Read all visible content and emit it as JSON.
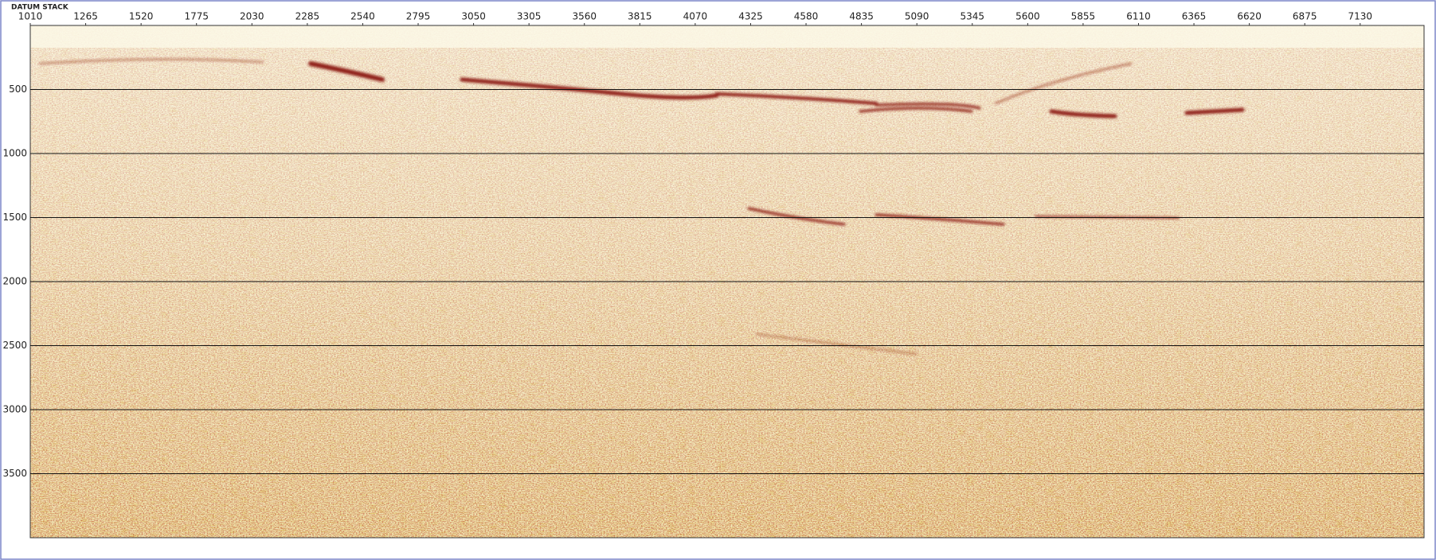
{
  "chart_data": {
    "type": "seismic",
    "title": "DATUM STACK",
    "xlim": [
      1010,
      7424
    ],
    "xticks": [
      1010,
      1265,
      1520,
      1775,
      2030,
      2285,
      2540,
      2795,
      3050,
      3305,
      3560,
      3815,
      4070,
      4325,
      4580,
      4835,
      5090,
      5345,
      5600,
      5855,
      6110,
      6365,
      6620,
      6875,
      7130
    ],
    "ylim": [
      0,
      4000
    ],
    "yticks": [
      500,
      1000,
      1500,
      2000,
      2500,
      3000,
      3500
    ],
    "y_inverted": true,
    "grid": true,
    "grid_color": "#111111"
  }
}
